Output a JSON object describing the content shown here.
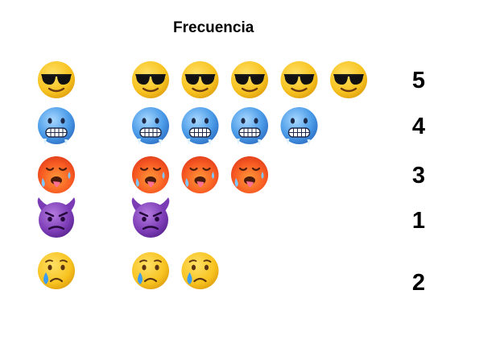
{
  "chart_data": {
    "type": "pictograph",
    "title": "Frecuencia",
    "categories": [
      "sunglasses-face",
      "cold-face",
      "hot-face",
      "smiling-face-with-horns",
      "sad-relieved-face"
    ],
    "values": [
      5,
      4,
      3,
      1,
      2
    ],
    "value_labels": [
      "5",
      "4",
      "3",
      "1",
      "2"
    ]
  }
}
